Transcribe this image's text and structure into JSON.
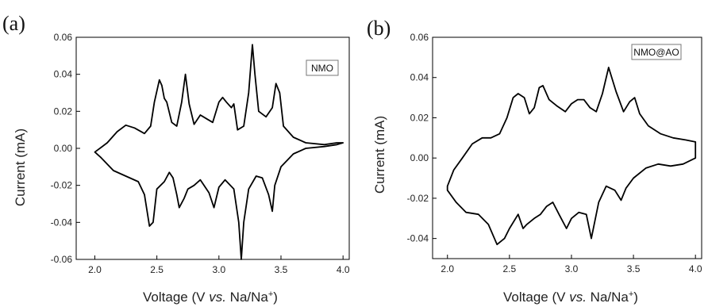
{
  "chart_data": [
    {
      "type": "line",
      "panel_label": "(a)",
      "legend": "NMO",
      "xlabel_main": "Voltage (V ",
      "xlabel_italic": "vs.",
      "xlabel_tail": " Na/Na",
      "xlabel_sup": "+",
      "xlabel_close": ")",
      "ylabel": "Current (mA)",
      "xlim": [
        1.85,
        4.05
      ],
      "ylim": [
        -0.06,
        0.06
      ],
      "xticks": [
        2.0,
        2.5,
        3.0,
        3.5,
        4.0
      ],
      "xtick_labels": [
        "2.0",
        "2.5",
        "3.0",
        "3.5",
        "4.0"
      ],
      "yticks": [
        -0.06,
        -0.04,
        -0.02,
        0.0,
        0.02,
        0.04,
        0.06
      ],
      "ytick_labels": [
        "-0.06",
        "-0.04",
        "-0.02",
        "0.00",
        "0.02",
        "0.04",
        "0.06"
      ],
      "series": [
        {
          "x": [
            2.0,
            2.1,
            2.18,
            2.25,
            2.32,
            2.4,
            2.45,
            2.48,
            2.52,
            2.54,
            2.56,
            2.58,
            2.62,
            2.66,
            2.7,
            2.73,
            2.76,
            2.8,
            2.85,
            2.9,
            2.95,
            3.0,
            3.03,
            3.06,
            3.1,
            3.12,
            3.15,
            3.2,
            3.24,
            3.27,
            3.29,
            3.32,
            3.38,
            3.43,
            3.46,
            3.49,
            3.52,
            3.6,
            3.7,
            3.85,
            3.95,
            4.0,
            3.95,
            3.85,
            3.7,
            3.6,
            3.5,
            3.45,
            3.43,
            3.4,
            3.35,
            3.3,
            3.24,
            3.2,
            3.18,
            3.16,
            3.12,
            3.05,
            3.0,
            2.96,
            2.92,
            2.85,
            2.8,
            2.75,
            2.72,
            2.68,
            2.66,
            2.63,
            2.6,
            2.56,
            2.5,
            2.47,
            2.44,
            2.4,
            2.35,
            2.25,
            2.15,
            2.05,
            2.0
          ],
          "y": [
            -0.002,
            0.003,
            0.009,
            0.0125,
            0.011,
            0.008,
            0.012,
            0.025,
            0.037,
            0.034,
            0.027,
            0.025,
            0.014,
            0.012,
            0.025,
            0.04,
            0.024,
            0.013,
            0.018,
            0.016,
            0.014,
            0.025,
            0.0275,
            0.025,
            0.022,
            0.024,
            0.01,
            0.012,
            0.03,
            0.056,
            0.04,
            0.02,
            0.017,
            0.022,
            0.035,
            0.03,
            0.012,
            0.006,
            0.003,
            0.002,
            0.003,
            0.003,
            0.002,
            0.001,
            0.0,
            -0.003,
            -0.01,
            -0.02,
            -0.034,
            -0.025,
            -0.016,
            -0.015,
            -0.022,
            -0.04,
            -0.06,
            -0.04,
            -0.022,
            -0.017,
            -0.021,
            -0.032,
            -0.024,
            -0.017,
            -0.02,
            -0.022,
            -0.027,
            -0.032,
            -0.025,
            -0.016,
            -0.013,
            -0.018,
            -0.022,
            -0.04,
            -0.042,
            -0.025,
            -0.018,
            -0.015,
            -0.012,
            -0.005,
            -0.002
          ]
        }
      ]
    },
    {
      "type": "line",
      "panel_label": "(b)",
      "legend": "NMO@AO",
      "xlabel_main": "Voltage (V ",
      "xlabel_italic": "vs.",
      "xlabel_tail": " Na/Na",
      "xlabel_sup": "+",
      "xlabel_close": ")",
      "ylabel": "Current (mA)",
      "xlim": [
        1.88,
        4.05
      ],
      "ylim": [
        -0.05,
        0.06
      ],
      "xticks": [
        2.0,
        2.5,
        3.0,
        3.5,
        4.0
      ],
      "xtick_labels": [
        "2.0",
        "2.5",
        "3.0",
        "3.5",
        "4.0"
      ],
      "yticks": [
        -0.04,
        -0.02,
        0.0,
        0.02,
        0.04,
        0.06
      ],
      "ytick_labels": [
        "-0.04",
        "-0.02",
        "0.00",
        "0.02",
        "0.04",
        "0.06"
      ],
      "series": [
        {
          "x": [
            2.0,
            2.05,
            2.12,
            2.2,
            2.28,
            2.35,
            2.42,
            2.48,
            2.53,
            2.57,
            2.62,
            2.66,
            2.7,
            2.74,
            2.77,
            2.82,
            2.88,
            2.95,
            3.0,
            3.05,
            3.1,
            3.15,
            3.2,
            3.25,
            3.3,
            3.36,
            3.42,
            3.47,
            3.51,
            3.55,
            3.62,
            3.72,
            3.82,
            3.92,
            4.0,
            4.0,
            3.9,
            3.8,
            3.7,
            3.6,
            3.5,
            3.44,
            3.4,
            3.35,
            3.28,
            3.22,
            3.16,
            3.12,
            3.06,
            3.0,
            2.96,
            2.9,
            2.85,
            2.8,
            2.75,
            2.7,
            2.64,
            2.61,
            2.57,
            2.5,
            2.46,
            2.4,
            2.33,
            2.25,
            2.15,
            2.07,
            2.0
          ],
          "y": [
            -0.014,
            -0.006,
            0.0,
            0.007,
            0.01,
            0.01,
            0.012,
            0.02,
            0.03,
            0.032,
            0.03,
            0.022,
            0.025,
            0.035,
            0.036,
            0.029,
            0.026,
            0.023,
            0.027,
            0.029,
            0.029,
            0.025,
            0.023,
            0.032,
            0.045,
            0.033,
            0.023,
            0.028,
            0.03,
            0.022,
            0.016,
            0.012,
            0.01,
            0.009,
            0.008,
            0.0,
            -0.003,
            -0.004,
            -0.003,
            -0.005,
            -0.01,
            -0.015,
            -0.021,
            -0.016,
            -0.014,
            -0.022,
            -0.04,
            -0.028,
            -0.027,
            -0.03,
            -0.035,
            -0.028,
            -0.022,
            -0.024,
            -0.028,
            -0.03,
            -0.033,
            -0.035,
            -0.028,
            -0.035,
            -0.04,
            -0.043,
            -0.033,
            -0.028,
            -0.027,
            -0.022,
            -0.016
          ]
        }
      ]
    }
  ]
}
